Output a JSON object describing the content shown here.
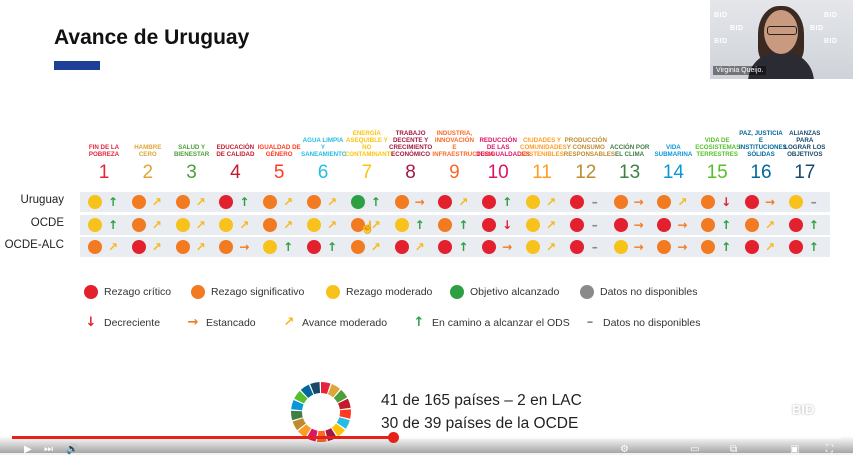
{
  "slide": {
    "title": "Avance de Uruguay"
  },
  "webcam": {
    "name": "Virginia Queijo.",
    "logos": [
      "BID",
      "BID",
      "BID",
      "BID",
      "BID",
      "BID"
    ]
  },
  "colors": {
    "rojo": "#e3202e",
    "naranja": "#f27a20",
    "amarillo": "#f7c21c",
    "verde": "#2ea043",
    "gris": "#8a8a8a",
    "accent": "#1d3f97"
  },
  "sdgs": [
    {
      "num": "1",
      "label": "Fin de la pobreza",
      "color": "#e5243b"
    },
    {
      "num": "2",
      "label": "Hambre cero",
      "color": "#dda63a"
    },
    {
      "num": "3",
      "label": "Salud y bienestar",
      "color": "#4c9f38"
    },
    {
      "num": "4",
      "label": "Educación de calidad",
      "color": "#c5192d"
    },
    {
      "num": "5",
      "label": "Igualdad de género",
      "color": "#ff3a21"
    },
    {
      "num": "6",
      "label": "Agua limpia y saneamiento",
      "color": "#26bde2"
    },
    {
      "num": "7",
      "label": "Energía asequible y no contaminante",
      "color": "#fcc30b"
    },
    {
      "num": "8",
      "label": "Trabajo decente y crecimiento económico",
      "color": "#a21942"
    },
    {
      "num": "9",
      "label": "Industria, innovación e infraestructura",
      "color": "#fd6925"
    },
    {
      "num": "10",
      "label": "Reducción de las desigualdades",
      "color": "#dd1367"
    },
    {
      "num": "11",
      "label": "Ciudades y comunidades sostenibles",
      "color": "#fd9d24"
    },
    {
      "num": "12",
      "label": "Producción y consumo responsables",
      "color": "#bf8b2e"
    },
    {
      "num": "13",
      "label": "Acción por el clima",
      "color": "#3f7e44"
    },
    {
      "num": "14",
      "label": "Vida submarina",
      "color": "#0a97d9"
    },
    {
      "num": "15",
      "label": "Vida de ecosistemas terrestres",
      "color": "#56c02b"
    },
    {
      "num": "16",
      "label": "Paz, justicia e instituciones sólidas",
      "color": "#00689d"
    },
    {
      "num": "17",
      "label": "Alianzas para lograr los objetivos",
      "color": "#19486a"
    }
  ],
  "rows": [
    {
      "label": "Uruguay",
      "cells": [
        [
          "amarillo",
          "up"
        ],
        [
          "naranja",
          "mod"
        ],
        [
          "naranja",
          "mod"
        ],
        [
          "rojo",
          "up"
        ],
        [
          "naranja",
          "mod"
        ],
        [
          "naranja",
          "mod"
        ],
        [
          "verde",
          "up"
        ],
        [
          "naranja",
          "flat"
        ],
        [
          "rojo",
          "mod"
        ],
        [
          "rojo",
          "up"
        ],
        [
          "amarillo",
          "mod"
        ],
        [
          "rojo",
          "none"
        ],
        [
          "naranja",
          "flat"
        ],
        [
          "naranja",
          "mod"
        ],
        [
          "naranja",
          "down"
        ],
        [
          "rojo",
          "flat"
        ],
        [
          "amarillo",
          "none"
        ]
      ]
    },
    {
      "label": "OCDE",
      "cells": [
        [
          "amarillo",
          "up"
        ],
        [
          "naranja",
          "mod"
        ],
        [
          "amarillo",
          "mod"
        ],
        [
          "amarillo",
          "mod"
        ],
        [
          "naranja",
          "mod"
        ],
        [
          "amarillo",
          "mod"
        ],
        [
          "naranja",
          "mod"
        ],
        [
          "amarillo",
          "up"
        ],
        [
          "naranja",
          "up"
        ],
        [
          "rojo",
          "down"
        ],
        [
          "amarillo",
          "mod"
        ],
        [
          "rojo",
          "none"
        ],
        [
          "rojo",
          "flat"
        ],
        [
          "rojo",
          "flat"
        ],
        [
          "naranja",
          "up"
        ],
        [
          "naranja",
          "mod"
        ],
        [
          "rojo",
          "up"
        ]
      ]
    },
    {
      "label": "OCDE-ALC",
      "cells": [
        [
          "naranja",
          "mod"
        ],
        [
          "rojo",
          "mod"
        ],
        [
          "naranja",
          "mod"
        ],
        [
          "naranja",
          "flat"
        ],
        [
          "amarillo",
          "up"
        ],
        [
          "rojo",
          "up"
        ],
        [
          "naranja",
          "mod"
        ],
        [
          "rojo",
          "mod"
        ],
        [
          "rojo",
          "up"
        ],
        [
          "rojo",
          "flat"
        ],
        [
          "amarillo",
          "mod"
        ],
        [
          "rojo",
          "none"
        ],
        [
          "amarillo",
          "flat"
        ],
        [
          "naranja",
          "flat"
        ],
        [
          "naranja",
          "up"
        ],
        [
          "rojo",
          "mod"
        ],
        [
          "rojo",
          "up"
        ]
      ]
    }
  ],
  "legend_status": [
    {
      "color": "rojo",
      "label": "Rezago crítico"
    },
    {
      "color": "naranja",
      "label": "Rezago significativo"
    },
    {
      "color": "amarillo",
      "label": "Rezago moderado"
    },
    {
      "color": "verde",
      "label": "Objetivo alcanzado"
    },
    {
      "color": "gris",
      "label": "Datos no disponibles"
    }
  ],
  "legend_trend": [
    {
      "trend": "down",
      "label": "Decreciente"
    },
    {
      "trend": "flat",
      "label": "Estancado"
    },
    {
      "trend": "mod",
      "label": "Avance moderado"
    },
    {
      "trend": "up",
      "label": "En camino a alcanzar el ODS"
    },
    {
      "trend": "none",
      "label": "Datos no disponibles"
    }
  ],
  "stats": {
    "line1": "41 de 165 países – 2 en LAC",
    "line2": "30 de 39 países de la OCDE"
  },
  "footer_logo": "BID",
  "video": {
    "progress": 0.46
  }
}
